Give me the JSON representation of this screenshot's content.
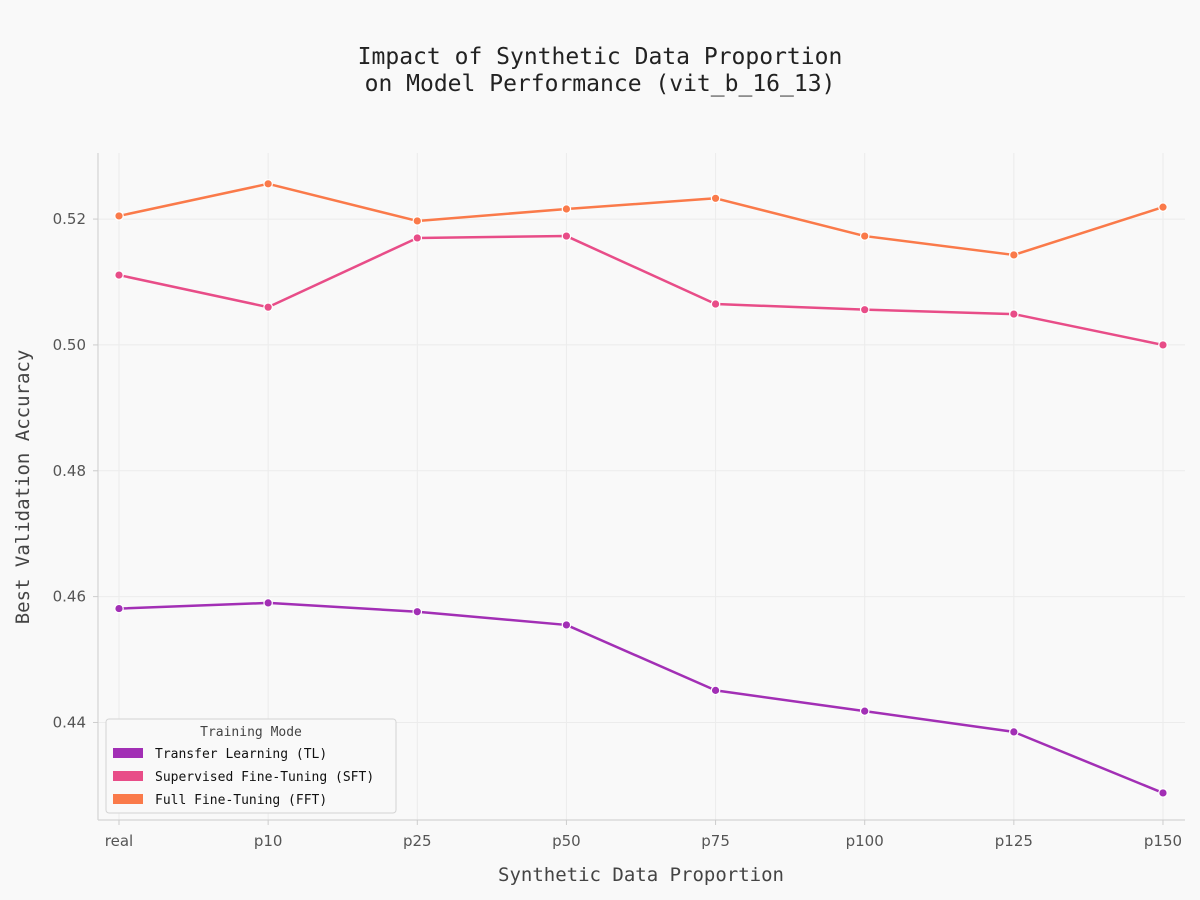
{
  "chart_data": {
    "type": "line",
    "title_lines": [
      "Impact of Synthetic Data Proportion",
      "on Model Performance (vit_b_16_13)"
    ],
    "xlabel": "Synthetic Data Proportion",
    "ylabel": "Best Validation Accuracy",
    "categories": [
      "real",
      "p10",
      "p25",
      "p50",
      "p75",
      "p100",
      "p125",
      "p150"
    ],
    "ylim": [
      0.4245,
      0.5305
    ],
    "yticks": [
      0.44,
      0.46,
      0.48,
      0.5,
      0.52
    ],
    "ytick_labels": [
      "0.44",
      "0.46",
      "0.48",
      "0.50",
      "0.52"
    ],
    "grid": true,
    "legend": {
      "title": "Training Mode",
      "placement": "lower-left"
    },
    "series": [
      {
        "name": "Transfer Learning (TL)",
        "color": "#a22fb5",
        "values": [
          0.4581,
          0.459,
          0.4576,
          0.4555,
          0.4451,
          0.4418,
          0.4385,
          0.4288
        ]
      },
      {
        "name": "Supervised Fine-Tuning (SFT)",
        "color": "#e84d88",
        "values": [
          0.5111,
          0.506,
          0.517,
          0.5173,
          0.5065,
          0.5056,
          0.5049,
          0.5
        ]
      },
      {
        "name": "Full Fine-Tuning (FFT)",
        "color": "#fa7a4a",
        "values": [
          0.5205,
          0.5256,
          0.5197,
          0.5216,
          0.5233,
          0.5173,
          0.5143,
          0.5219
        ]
      }
    ]
  }
}
